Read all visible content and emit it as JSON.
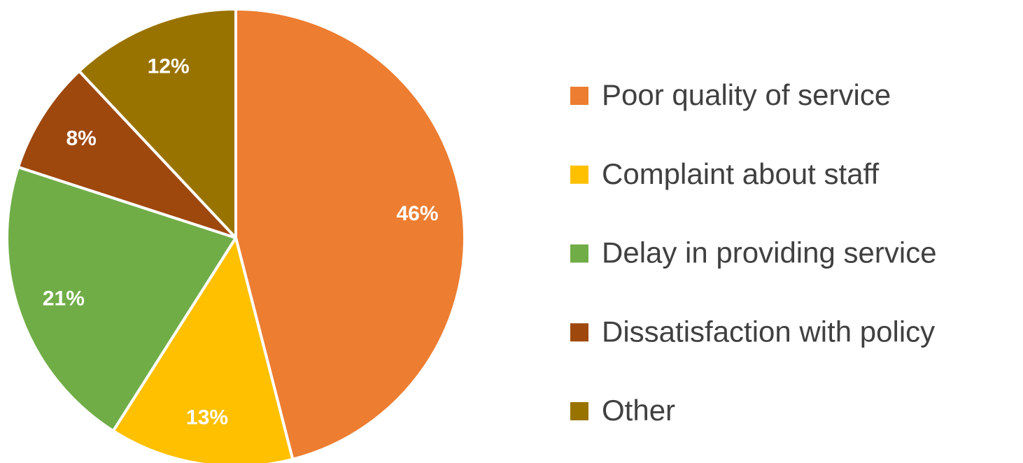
{
  "chart_data": {
    "type": "pie",
    "categories": [
      "Poor quality of service",
      "Complaint about staff",
      "Delay in providing service",
      "Dissatisfaction with policy",
      "Other"
    ],
    "values": [
      46,
      13,
      21,
      8,
      12
    ],
    "value_labels": [
      "46%",
      "13%",
      "21%",
      "8%",
      "12%"
    ],
    "colors": [
      "#ED7D31",
      "#FFC000",
      "#70AD47",
      "#9E480E",
      "#997300"
    ],
    "legend": "right"
  }
}
